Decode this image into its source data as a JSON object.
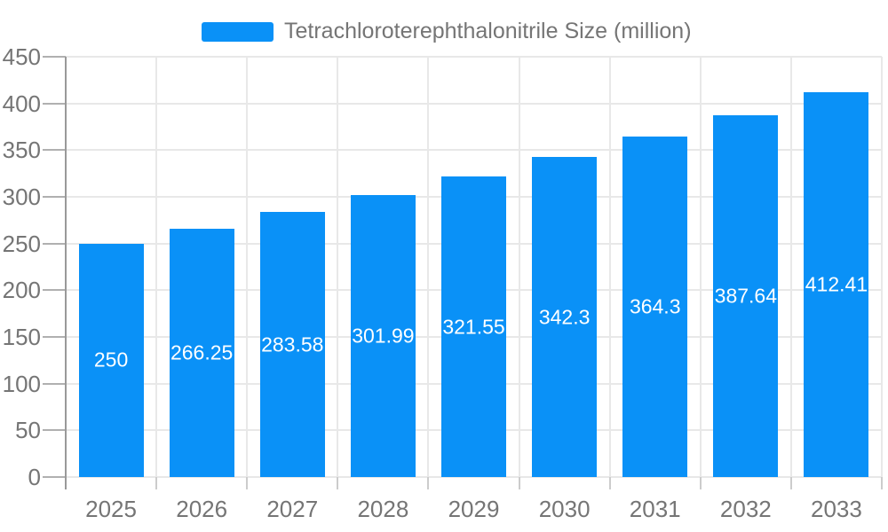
{
  "legend": {
    "label": "Tetrachloroterephthalonitrile Size (million)"
  },
  "chart_data": {
    "type": "bar",
    "title": "Tetrachloroterephthalonitrile Size (million)",
    "categories": [
      "2025",
      "2026",
      "2027",
      "2028",
      "2029",
      "2030",
      "2031",
      "2032",
      "2033"
    ],
    "series": [
      {
        "name": "Tetrachloroterephthalonitrile Size (million)",
        "values": [
          250,
          266.25,
          283.58,
          301.99,
          321.55,
          342.3,
          364.3,
          387.64,
          412.41
        ]
      }
    ],
    "value_labels": [
      "250",
      "266.25",
      "283.58",
      "301.99",
      "321.55",
      "342.3",
      "364.3",
      "387.64",
      "412.41"
    ],
    "xlabel": "",
    "ylabel": "",
    "ylim": [
      0,
      450
    ],
    "yticks": [
      0,
      50,
      100,
      150,
      200,
      250,
      300,
      350,
      400,
      450
    ],
    "grid": true,
    "legend_position": "top",
    "colors": {
      "bar": "#0a91f7",
      "value_label": "#ffffff",
      "axis_label": "#757575",
      "gridline": "#e8e8e8",
      "axis_line": "#999999",
      "y_tick": "#b0b0b0",
      "x_tick": "#cccccc"
    }
  }
}
